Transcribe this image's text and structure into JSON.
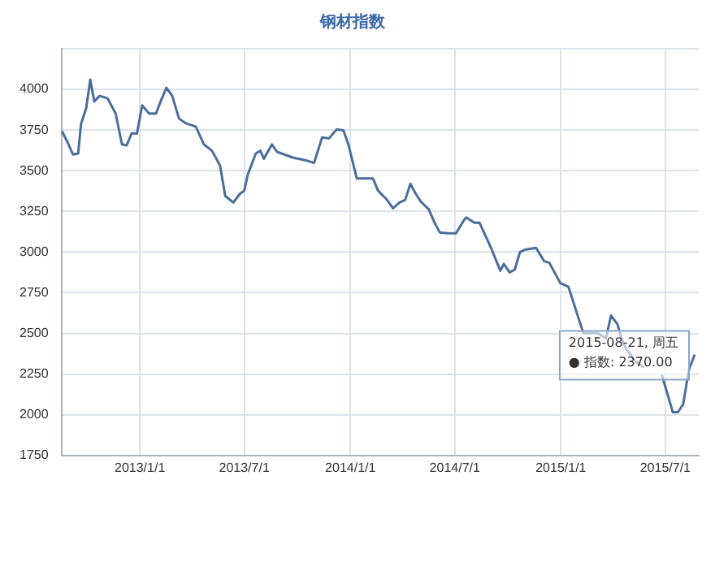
{
  "chart_data": {
    "type": "line",
    "title": "钢材指数",
    "x": [
      "2012-08-19",
      "2012-08-29",
      "2012-09-07",
      "2012-09-16",
      "2012-09-21",
      "2012-09-30",
      "2012-10-07",
      "2012-10-14",
      "2012-10-23",
      "2012-11-06",
      "2012-11-20",
      "2012-12-01",
      "2012-12-09",
      "2012-12-18",
      "2012-12-27",
      "2013-01-05",
      "2013-01-17",
      "2013-01-29",
      "2013-02-07",
      "2013-02-16",
      "2013-02-26",
      "2013-03-10",
      "2013-03-21",
      "2013-04-08",
      "2013-04-22",
      "2013-05-06",
      "2013-05-20",
      "2013-05-29",
      "2013-06-12",
      "2013-06-24",
      "2013-07-01",
      "2013-07-07",
      "2013-07-21",
      "2013-07-29",
      "2013-08-04",
      "2013-08-18",
      "2013-08-27",
      "2013-09-23",
      "2013-10-16",
      "2013-10-30",
      "2013-11-13",
      "2013-11-25",
      "2013-12-08",
      "2013-12-20",
      "2013-12-29",
      "2014-01-12",
      "2014-02-09",
      "2014-02-18",
      "2014-03-04",
      "2014-03-16",
      "2014-03-27",
      "2014-04-06",
      "2014-04-15",
      "2014-04-24",
      "2014-05-03",
      "2014-05-17",
      "2014-05-27",
      "2014-06-05",
      "2014-06-19",
      "2014-07-03",
      "2014-07-17",
      "2014-07-21",
      "2014-08-04",
      "2014-08-13",
      "2014-09-01",
      "2014-09-18",
      "2014-09-24",
      "2014-10-04",
      "2014-10-13",
      "2014-10-22",
      "2014-11-01",
      "2014-11-19",
      "2014-12-03",
      "2014-12-12",
      "2014-12-31",
      "2015-01-14",
      "2015-01-23",
      "2015-02-09",
      "2015-03-06",
      "2015-03-20",
      "2015-03-29",
      "2015-04-09",
      "2015-04-17",
      "2015-04-25",
      "2015-05-10",
      "2015-05-25",
      "2015-06-10",
      "2015-06-25",
      "2015-07-14",
      "2015-07-23",
      "2015-08-01",
      "2015-08-11",
      "2015-08-21"
    ],
    "series": [
      {
        "color": "#4a6e9c",
        "values": [
          3744,
          3672,
          3600,
          3606,
          3787,
          3886,
          4060,
          3925,
          3961,
          3945,
          3852,
          3662,
          3656,
          3731,
          3728,
          3902,
          3852,
          3852,
          3935,
          4010,
          3961,
          3820,
          3793,
          3771,
          3662,
          3623,
          3532,
          3345,
          3305,
          3360,
          3377,
          3475,
          3606,
          3623,
          3574,
          3662,
          3616,
          3581,
          3564,
          3548,
          3705,
          3699,
          3754,
          3748,
          3656,
          3453,
          3453,
          3377,
          3328,
          3269,
          3305,
          3321,
          3420,
          3360,
          3311,
          3262,
          3180,
          3121,
          3115,
          3115,
          3197,
          3213,
          3180,
          3180,
          3033,
          2885,
          2927,
          2875,
          2892,
          3000,
          3016,
          3026,
          2944,
          2934,
          2809,
          2787,
          2688,
          2501,
          2501,
          2469,
          2610,
          2557,
          2459,
          2400,
          2330,
          2290,
          null,
          2245,
          2016,
          2016,
          2065,
          2278,
          2370
        ]
      }
    ],
    "xlim": [
      "2012-08-18",
      "2015-08-28"
    ],
    "xticks": [
      {
        "value": "2013-01-01",
        "label": "2013/1/1"
      },
      {
        "value": "2013-07-01",
        "label": "2013/7/1"
      },
      {
        "value": "2014-01-01",
        "label": "2014/1/1"
      },
      {
        "value": "2014-07-01",
        "label": "2014/7/1"
      },
      {
        "value": "2015-01-01",
        "label": "2015/1/1"
      },
      {
        "value": "2015-07-01",
        "label": "2015/7/1"
      }
    ],
    "ylim": [
      1750,
      4250
    ],
    "yticks": [
      1750,
      2000,
      2250,
      2500,
      2750,
      3000,
      3250,
      3500,
      3750,
      4000,
      {
        "value": 4250,
        "label": null
      }
    ],
    "grid": true,
    "marker": "none",
    "line_style": "solid",
    "annotations": [
      {
        "text": "2015-08-21, 周五\n● 指数: 2370.00",
        "x": "2015-08-21",
        "y": 2370
      }
    ]
  }
}
